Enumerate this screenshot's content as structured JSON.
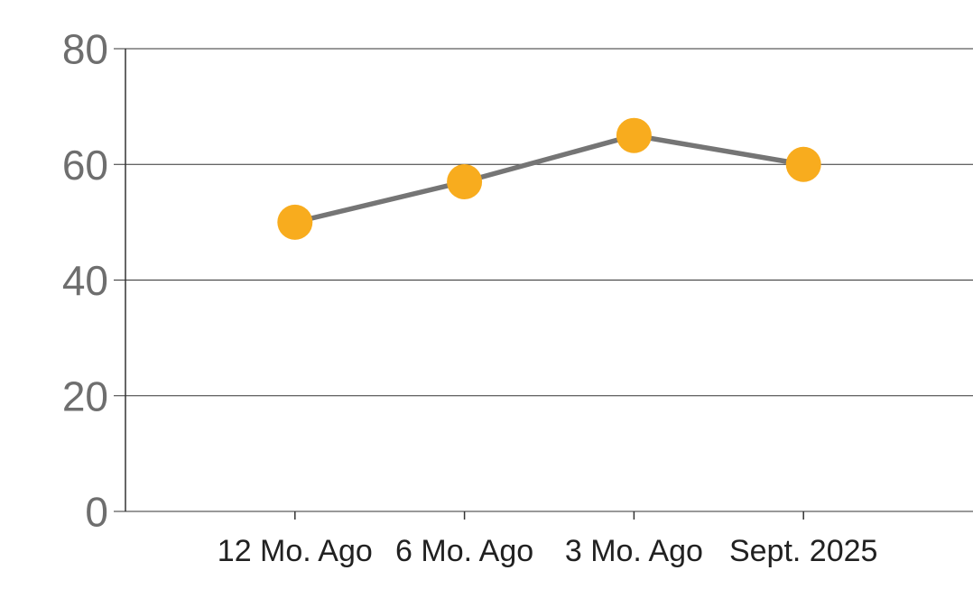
{
  "chart_data": {
    "type": "line",
    "categories": [
      "12 Mo. Ago",
      "6 Mo. Ago",
      "3 Mo. Ago",
      "Sept. 2025"
    ],
    "values": [
      50,
      57,
      65,
      60
    ],
    "title": "",
    "xlabel": "",
    "ylabel": "",
    "ylim": [
      0,
      80
    ],
    "yticks": [
      0,
      20,
      40,
      60,
      80
    ],
    "grid": "horizontal",
    "legend": "none",
    "marker": "circle",
    "colors": {
      "marker_fill": "#F8AC1E",
      "line_stroke": "#757575",
      "grid_stroke": "#333333",
      "axis_stroke": "#333333",
      "y_tick_label": "#6E6E6E",
      "x_tick_label": "#212121",
      "background": "#FFFFFF"
    }
  }
}
